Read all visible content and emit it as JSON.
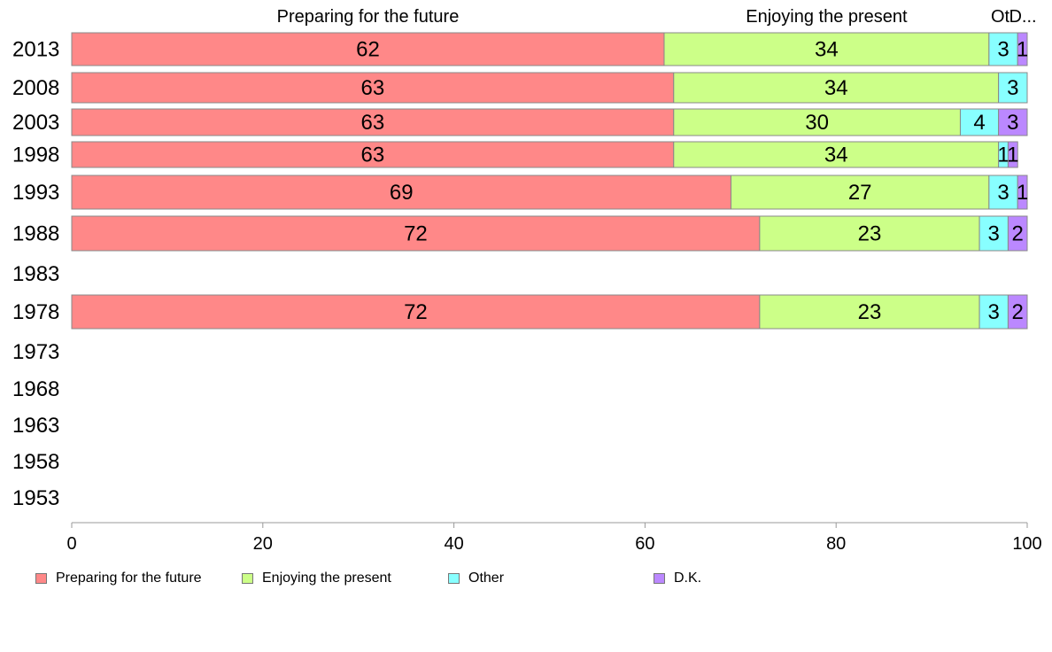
{
  "chart_data": {
    "type": "bar",
    "orientation": "horizontal",
    "stacked": true,
    "categories": [
      "2013",
      "2008",
      "2003",
      "1998",
      "1993",
      "1988",
      "1983",
      "1978",
      "1973",
      "1968",
      "1963",
      "1958",
      "1953"
    ],
    "series": [
      {
        "name": "Preparing for the future",
        "color": "#ff8888",
        "values": [
          62,
          63,
          63,
          63,
          69,
          72,
          null,
          72,
          null,
          null,
          null,
          null,
          null
        ],
        "labels": [
          "62",
          "63",
          "63",
          "63",
          "69",
          "72",
          "",
          "72",
          "",
          "",
          "",
          "",
          ""
        ]
      },
      {
        "name": "Enjoying the present",
        "color": "#ccff88",
        "values": [
          34,
          34,
          30,
          34,
          27,
          23,
          null,
          23,
          null,
          null,
          null,
          null,
          null
        ],
        "labels": [
          "34",
          "34",
          "30",
          "34",
          "27",
          "23",
          "",
          "23",
          "",
          "",
          "",
          "",
          ""
        ]
      },
      {
        "name": "Other",
        "color": "#88ffff",
        "values": [
          3,
          3,
          4,
          1,
          3,
          3,
          null,
          3,
          null,
          null,
          null,
          null,
          null
        ],
        "labels": [
          "3",
          "3",
          "4",
          "1",
          "3",
          "3",
          "",
          "3",
          "",
          "",
          "",
          "",
          ""
        ]
      },
      {
        "name": "D.K.",
        "color": "#bb88ff",
        "values": [
          1,
          0,
          3,
          1,
          1,
          2,
          null,
          2,
          null,
          null,
          null,
          null,
          null
        ],
        "labels": [
          "1",
          "",
          "3",
          "1",
          "1",
          "2",
          "",
          "2",
          "",
          "",
          "",
          "",
          ""
        ]
      }
    ],
    "column_headers": [
      "Preparing for the future",
      "Enjoying the present",
      "Ot",
      "D..."
    ],
    "xlim": [
      0,
      100
    ],
    "xticks": [
      "0",
      "20",
      "40",
      "60",
      "80",
      "100"
    ],
    "grid": false,
    "legend_position": "bottom"
  }
}
